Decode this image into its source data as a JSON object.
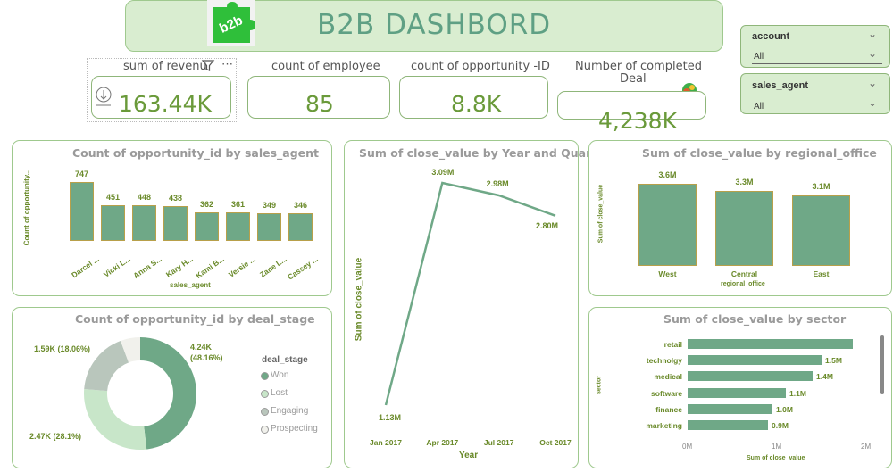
{
  "header": {
    "title": "B2B DASHBORD",
    "logo_text": "b2b"
  },
  "kpis": {
    "revenue": {
      "label": "sum of revenu",
      "value": "163.44K"
    },
    "employees": {
      "label": "count of employee",
      "value": "85"
    },
    "opportunities": {
      "label": "count of opportunity -ID",
      "value": "8.8K"
    },
    "completed": {
      "label_line1": "Number of completed",
      "label_line2": "Deal",
      "value": "4,238K"
    }
  },
  "slicers": {
    "account": {
      "title": "account",
      "value": "All"
    },
    "sales_agent": {
      "title": "sales_agent",
      "value": "All"
    }
  },
  "charts": {
    "agent_chart": {
      "title": "Count of opportunity_id by sales_agent",
      "xlabel": "sales_agent",
      "ylabel": "Count of opportunity..."
    },
    "yearq_chart": {
      "title": "Sum of close_value by Year and Quarter",
      "xlabel": "Year",
      "ylabel": "Sum of close_value"
    },
    "region_chart": {
      "title": "Sum of close_value by regional_office",
      "xlabel": "regional_office",
      "ylabel": "Sum of close_value"
    },
    "stage_chart": {
      "title": "Count of opportunity_id by deal_stage",
      "legend_title": "deal_stage"
    },
    "sector_chart": {
      "title": "Sum of close_value by sector",
      "xlabel": "Sum of close_value",
      "ylabel": "sector"
    }
  },
  "chart_data": [
    {
      "type": "bar",
      "title": "Count of opportunity_id by sales_agent",
      "categories": [
        "Darcel ...",
        "Vicki L...",
        "Anna S...",
        "Kary H...",
        "Kami B...",
        "Versie ...",
        "Zane L...",
        "Cassey ..."
      ],
      "values": [
        747,
        451,
        448,
        438,
        362,
        361,
        349,
        346
      ],
      "data_labels": [
        "747",
        "451",
        "448",
        "438",
        "362",
        "361",
        "349",
        "346"
      ],
      "xlabel": "sales_agent",
      "ylabel": "Count of opportunity..."
    },
    {
      "type": "line",
      "title": "Sum of close_value by Year and Quarter",
      "x": [
        "Jan 2017",
        "Apr 2017",
        "Jul 2017",
        "Oct 2017"
      ],
      "values": [
        1.13,
        3.09,
        2.98,
        2.8
      ],
      "data_labels": [
        "1.13M",
        "3.09M",
        "2.98M",
        "2.80M"
      ],
      "xlabel": "Year",
      "ylabel": "Sum of close_value",
      "ylim": [
        1.13,
        3.09
      ]
    },
    {
      "type": "bar",
      "title": "Sum of close_value by regional_office",
      "categories": [
        "West",
        "Central",
        "East"
      ],
      "values": [
        3.6,
        3.3,
        3.1
      ],
      "data_labels": [
        "3.6M",
        "3.3M",
        "3.1M"
      ],
      "xlabel": "regional_office",
      "ylabel": "Sum of close_value"
    },
    {
      "type": "pie",
      "title": "Count of opportunity_id by deal_stage",
      "categories": [
        "Won",
        "Lost",
        "Engaging",
        "Prospecting"
      ],
      "values": [
        4.24,
        2.47,
        1.59,
        0.5
      ],
      "data_labels": [
        "4.24K (48.16%)",
        "2.47K (28.1%)",
        "1.59K (18.06%)",
        ""
      ],
      "legend_title": "deal_stage",
      "colors": [
        "#6fa887",
        "#c8e6c9",
        "#b9c6bc",
        "#f1f1ec"
      ]
    },
    {
      "type": "bar",
      "title": "Sum of close_value by sector",
      "categories": [
        "retail",
        "technolgy",
        "medical",
        "software",
        "finance",
        "marketing"
      ],
      "values": [
        1.85,
        1.5,
        1.4,
        1.1,
        0.95,
        0.9
      ],
      "data_labels": [
        "",
        "1.5M",
        "1.4M",
        "1.1M",
        "1.0M",
        "0.9M"
      ],
      "xlabel": "Sum of close_value",
      "ylabel": "sector",
      "ticks": [
        "0M",
        "1M",
        "2M"
      ],
      "xlim": [
        0,
        2
      ]
    }
  ]
}
